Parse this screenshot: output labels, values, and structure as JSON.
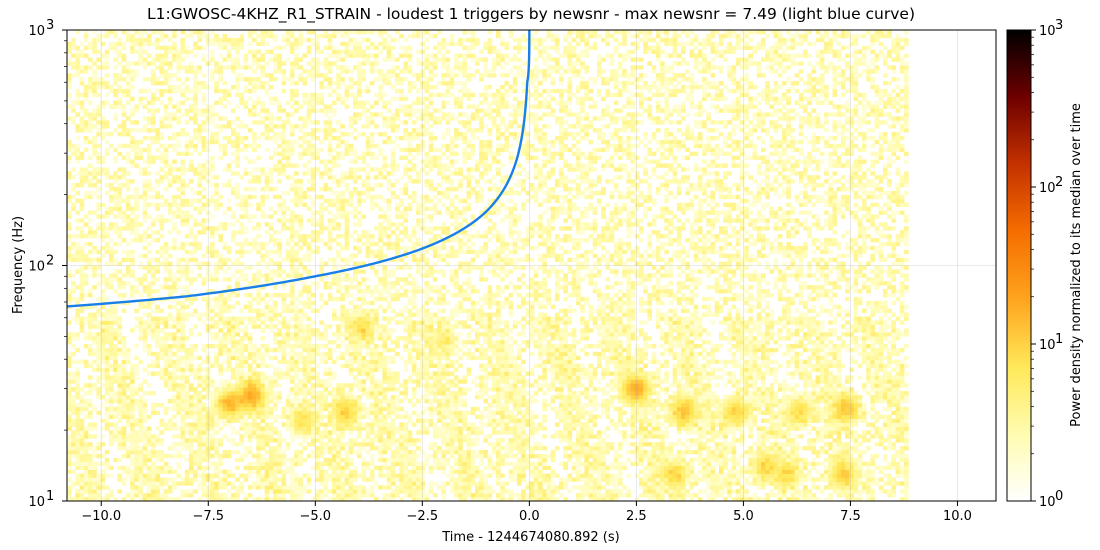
{
  "chart_data": {
    "type": "heatmap",
    "title": "L1:GWOSC-4KHZ_R1_STRAIN - loudest 1 triggers by newsnr - max newsnr = 7.49 (light blue curve)",
    "xlabel": "Time - 1244674080.892 (s)",
    "ylabel": "Frequency (Hz)",
    "xlim": [
      -10.8,
      10.9
    ],
    "ylim": [
      10,
      1000
    ],
    "yscale": "log",
    "grid": true,
    "x_ticks": [
      {
        "value": -10,
        "label": "−10.0"
      },
      {
        "value": -7.5,
        "label": "−7.5"
      },
      {
        "value": -5,
        "label": "−5.0"
      },
      {
        "value": -2.5,
        "label": "−2.5"
      },
      {
        "value": 0,
        "label": "0.0"
      },
      {
        "value": 2.5,
        "label": "2.5"
      },
      {
        "value": 5,
        "label": "5.0"
      },
      {
        "value": 7.5,
        "label": "7.5"
      },
      {
        "value": 10,
        "label": "10.0"
      }
    ],
    "y_ticks": [
      {
        "value": 10,
        "base": "10",
        "exp": "1"
      },
      {
        "value": 100,
        "base": "10",
        "exp": "2"
      },
      {
        "value": 1000,
        "base": "10",
        "exp": "3"
      }
    ],
    "spectrogram": {
      "time_range": [
        -10.8,
        8.85
      ],
      "freq_range": [
        10,
        1000
      ],
      "hot_spots": [
        {
          "t": -7.0,
          "f": 26,
          "v": 14
        },
        {
          "t": -6.5,
          "f": 28,
          "v": 16
        },
        {
          "t": -5.3,
          "f": 22,
          "v": 6
        },
        {
          "t": -4.3,
          "f": 24,
          "v": 10
        },
        {
          "t": -3.9,
          "f": 55,
          "v": 6
        },
        {
          "t": -2.0,
          "f": 48,
          "v": 4
        },
        {
          "t": 2.5,
          "f": 30,
          "v": 16
        },
        {
          "t": 3.6,
          "f": 24,
          "v": 12
        },
        {
          "t": 3.4,
          "f": 13,
          "v": 8
        },
        {
          "t": 4.8,
          "f": 24,
          "v": 10
        },
        {
          "t": 5.5,
          "f": 14,
          "v": 8
        },
        {
          "t": 6.3,
          "f": 24,
          "v": 8
        },
        {
          "t": 7.4,
          "f": 25,
          "v": 12
        },
        {
          "t": 7.3,
          "f": 13,
          "v": 8
        },
        {
          "t": 6.0,
          "f": 13,
          "v": 6
        }
      ]
    },
    "trigger_curve": {
      "color": "#1a7fe8",
      "t_merger": 0.0,
      "points": [
        {
          "t": -10.8,
          "f": 67
        },
        {
          "t": -8.0,
          "f": 74
        },
        {
          "t": -5.0,
          "f": 90
        },
        {
          "t": -2.5,
          "f": 118
        },
        {
          "t": -1.0,
          "f": 170
        },
        {
          "t": -0.3,
          "f": 280
        },
        {
          "t": -0.05,
          "f": 600
        },
        {
          "t": 0.0,
          "f": 1000
        }
      ]
    },
    "colorbar": {
      "label": "Power density normalized to its median over time",
      "scale": "log",
      "range": [
        1,
        1000
      ],
      "colormap": [
        "#ffffff",
        "#fffcb0",
        "#ffe858",
        "#ffa41e",
        "#f56e00",
        "#c43200",
        "#6e0000",
        "#000000"
      ],
      "ticks": [
        {
          "value": 1,
          "base": "10",
          "exp": "0"
        },
        {
          "value": 10,
          "base": "10",
          "exp": "1"
        },
        {
          "value": 100,
          "base": "10",
          "exp": "2"
        },
        {
          "value": 1000,
          "base": "10",
          "exp": "3"
        }
      ]
    }
  }
}
